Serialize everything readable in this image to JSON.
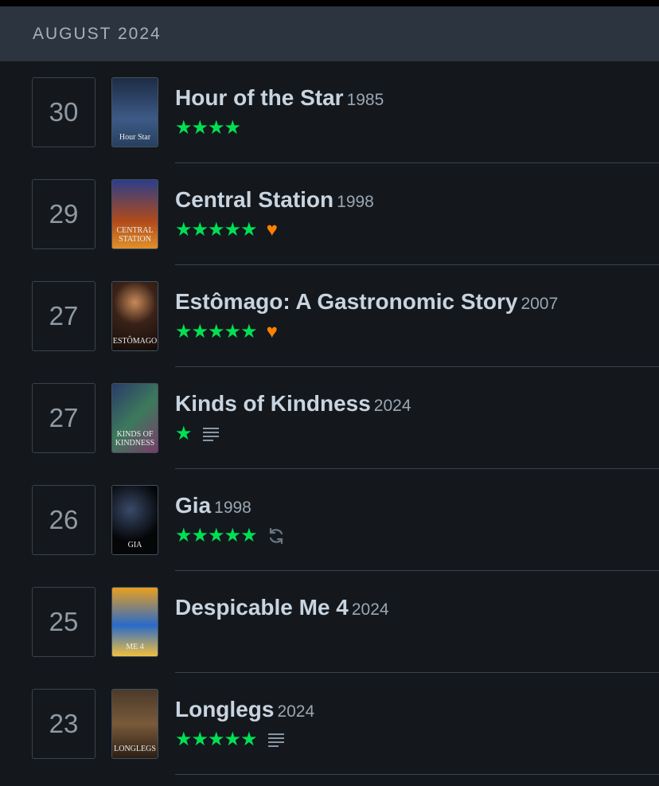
{
  "header": {
    "month": "AUGUST 2024"
  },
  "colors": {
    "star": "#00e054",
    "heart": "#ff8000",
    "header_bg": "#2c3440",
    "page_bg": "#14181c"
  },
  "entries": [
    {
      "day": "30",
      "title": "Hour of the Star",
      "year": "1985",
      "rating": 4,
      "liked": false,
      "review": false,
      "rewatch": false,
      "poster_text": "Hour Star",
      "poster_bg": "linear-gradient(#1d2c45,#3d5a86 60%,#27405f)"
    },
    {
      "day": "29",
      "title": "Central Station",
      "year": "1998",
      "rating": 5,
      "liked": true,
      "review": false,
      "rewatch": false,
      "poster_text": "CENTRAL STATION",
      "poster_bg": "linear-gradient(#2c3e8a,#b04a1a 60%,#e0902a)"
    },
    {
      "day": "27",
      "title": "Estômago: A Gastronomic Story",
      "year": "2007",
      "rating": 5,
      "liked": true,
      "review": false,
      "rewatch": false,
      "poster_text": "ESTÔMAGO",
      "poster_bg": "radial-gradient(circle at 50% 30%,#c88a5a,#3a2218 40%,#120c0a)"
    },
    {
      "day": "27",
      "title": "Kinds of Kindness",
      "year": "2024",
      "rating": 1,
      "liked": false,
      "review": true,
      "rewatch": false,
      "poster_text": "KINDS OF KINDNESS",
      "poster_bg": "linear-gradient(135deg,#2b3a6a,#3c7a5c 50%,#7a3c6a)"
    },
    {
      "day": "26",
      "title": "Gia",
      "year": "1998",
      "rating": 5,
      "liked": false,
      "review": false,
      "rewatch": true,
      "poster_text": "GIA",
      "poster_bg": "radial-gradient(circle at 40% 35%,#3a4a6a,#050608 60%)"
    },
    {
      "day": "25",
      "title": "Despicable Me 4",
      "year": "2024",
      "rating": null,
      "liked": false,
      "review": false,
      "rewatch": false,
      "poster_text": "ME 4",
      "poster_bg": "linear-gradient(#e8a020,#2a6ac8 55%,#f0c040)"
    },
    {
      "day": "23",
      "title": "Longlegs",
      "year": "2024",
      "rating": 5,
      "liked": false,
      "review": true,
      "rewatch": false,
      "poster_text": "LONGLEGS",
      "poster_bg": "linear-gradient(#4a3a2a,#7a5a3a 50%,#2a1e14)"
    }
  ]
}
